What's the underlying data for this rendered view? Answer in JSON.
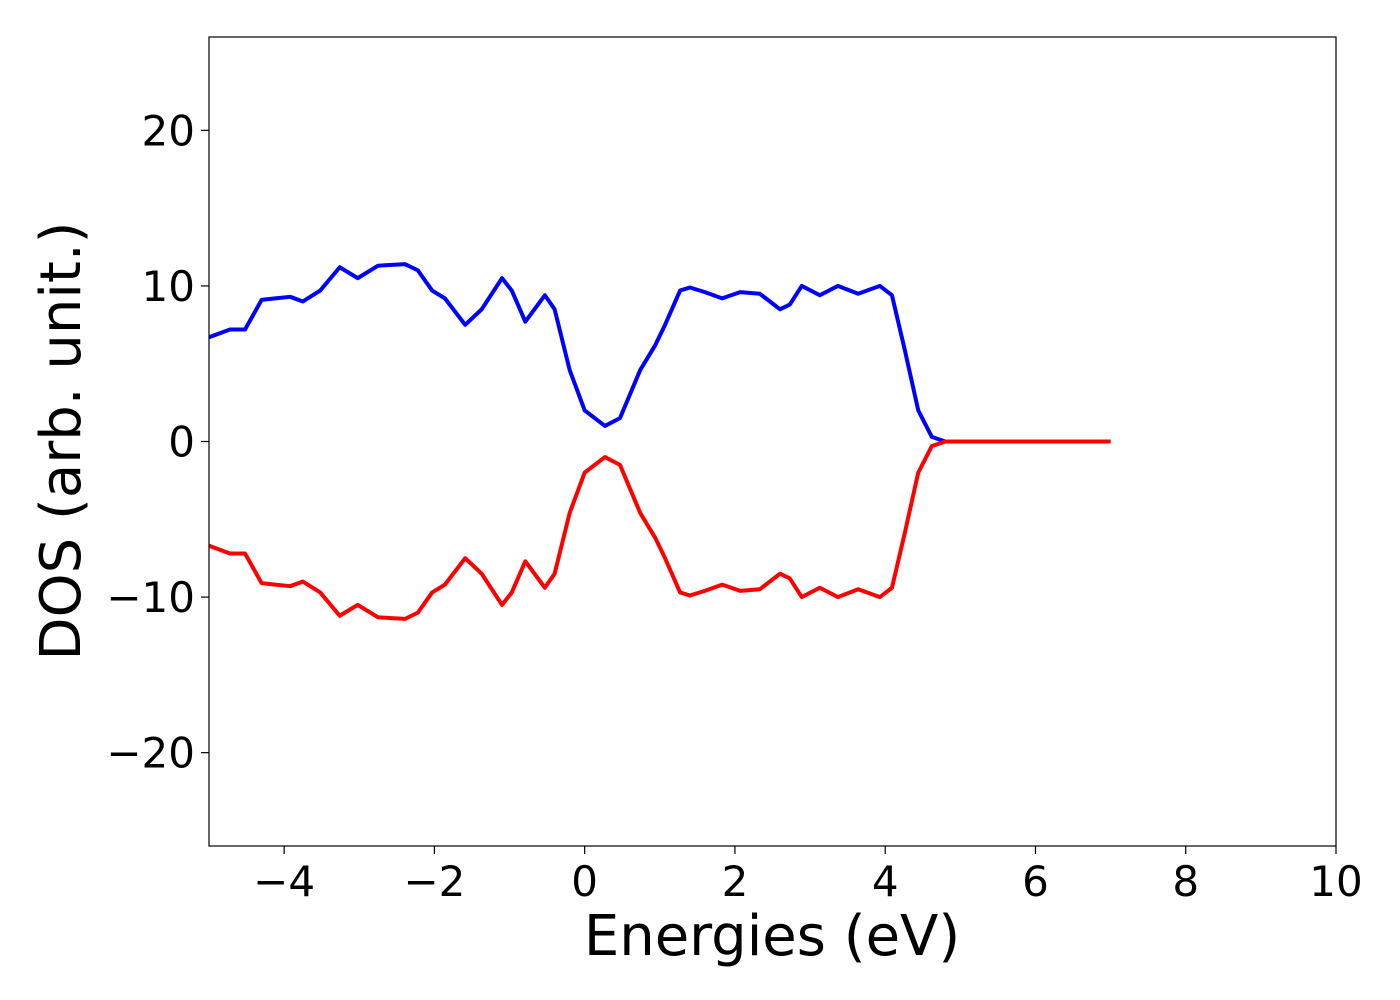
{
  "chart_data": {
    "type": "line",
    "xlabel": "Energies (eV)",
    "ylabel": "DOS (arb. unit.)",
    "xlim": [
      -5,
      10
    ],
    "ylim": [
      -26,
      26
    ],
    "xticks": [
      {
        "value": -4,
        "label": "−4"
      },
      {
        "value": -2,
        "label": "−2"
      },
      0,
      2,
      4,
      6,
      8,
      10
    ],
    "yticks": [
      {
        "value": -20,
        "label": "−20"
      },
      {
        "value": -10,
        "label": "−10"
      },
      0,
      10,
      20
    ],
    "grid": false,
    "x": [
      -5,
      -4.72,
      -4.52,
      -4.3,
      -4.12,
      -3.92,
      -3.75,
      -3.52,
      -3.26,
      -3.02,
      -2.75,
      -2.39,
      -2.22,
      -2.03,
      -1.86,
      -1.59,
      -1.37,
      -1.1,
      -0.97,
      -0.79,
      -0.53,
      -0.4,
      -0.2,
      0.0,
      0.27,
      0.47,
      0.74,
      0.94,
      1.07,
      1.27,
      1.4,
      1.6,
      1.83,
      2.07,
      2.33,
      2.6,
      2.73,
      2.89,
      3.13,
      3.37,
      3.64,
      3.93,
      4.09,
      4.26,
      4.44,
      4.62,
      4.8,
      7.0
    ],
    "series": [
      {
        "color": "#0000ff",
        "values": [
          6.7,
          7.2,
          7.2,
          9.1,
          9.2,
          9.3,
          9.0,
          9.7,
          11.2,
          10.5,
          11.3,
          11.4,
          11.0,
          9.7,
          9.2,
          7.5,
          8.5,
          10.5,
          9.7,
          7.7,
          9.4,
          8.5,
          4.6,
          2.0,
          1.0,
          1.5,
          4.6,
          6.2,
          7.5,
          9.7,
          9.9,
          9.6,
          9.2,
          9.6,
          9.5,
          8.5,
          8.8,
          10.0,
          9.4,
          10.0,
          9.5,
          10.0,
          9.4,
          5.9,
          2.0,
          0.3,
          0,
          0
        ]
      },
      {
        "color": "#ff0000",
        "values": [
          -6.7,
          -7.2,
          -7.2,
          -9.1,
          -9.2,
          -9.3,
          -9.0,
          -9.7,
          -11.2,
          -10.5,
          -11.3,
          -11.4,
          -11.0,
          -9.7,
          -9.2,
          -7.5,
          -8.5,
          -10.5,
          -9.7,
          -7.7,
          -9.4,
          -8.5,
          -4.6,
          -2.0,
          -1.0,
          -1.5,
          -4.6,
          -6.2,
          -7.5,
          -9.7,
          -9.9,
          -9.6,
          -9.2,
          -9.6,
          -9.5,
          -8.5,
          -8.8,
          -10.0,
          -9.4,
          -10.0,
          -9.5,
          -10.0,
          -9.4,
          -5.9,
          -2.0,
          -0.3,
          0,
          0
        ]
      }
    ]
  }
}
